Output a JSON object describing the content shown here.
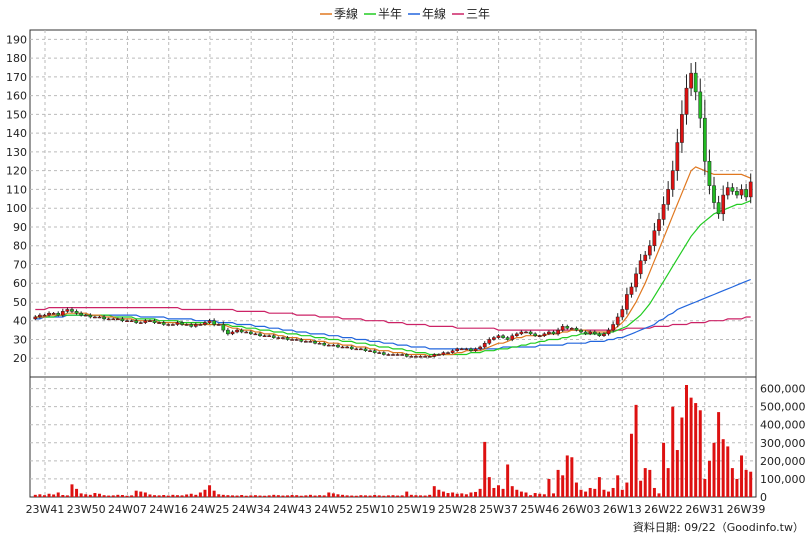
{
  "chart_data": {
    "type": "candlestick",
    "legend": [
      {
        "name": "季線",
        "color": "#e07820"
      },
      {
        "name": "半年",
        "color": "#22cc22"
      },
      {
        "name": "年線",
        "color": "#2266dd"
      },
      {
        "name": "三年",
        "color": "#cc2266"
      }
    ],
    "price_axis": {
      "min": 10,
      "max": 195,
      "ticks": [
        20,
        30,
        40,
        50,
        60,
        70,
        80,
        90,
        100,
        110,
        120,
        130,
        140,
        150,
        160,
        170,
        180,
        190
      ]
    },
    "volume_axis": {
      "min": 0,
      "max": 620000,
      "ticks": [
        0,
        100000,
        200000,
        300000,
        400000,
        500000,
        600000
      ],
      "tick_labels": [
        "0",
        "100,000",
        "200,000",
        "300,000",
        "400,000",
        "500,000",
        "600,000"
      ]
    },
    "x_labels": [
      "23W41",
      "23W50",
      "24W07",
      "24W16",
      "24W25",
      "24W34",
      "24W43",
      "24W52",
      "25W10",
      "25W19",
      "25W28",
      "25W37",
      "25W46",
      "26W03",
      "26W13",
      "26W22",
      "26W31",
      "26W39"
    ],
    "weeks": 157,
    "close": [
      42,
      43,
      43,
      44,
      44,
      43,
      45,
      46,
      45,
      44,
      43,
      43,
      42,
      42,
      42,
      41,
      41,
      41,
      41,
      40,
      40,
      40,
      39,
      39,
      40,
      40,
      39,
      39,
      38,
      38,
      38,
      39,
      38,
      38,
      37,
      38,
      38,
      39,
      40,
      38,
      38,
      35,
      33,
      34,
      35,
      34,
      34,
      33,
      33,
      32,
      32,
      32,
      31,
      31,
      31,
      30,
      30,
      30,
      29,
      29,
      29,
      28,
      28,
      27,
      27,
      27,
      26,
      26,
      26,
      25,
      25,
      25,
      24,
      24,
      23,
      23,
      22,
      22,
      22,
      22,
      22,
      21,
      21,
      21,
      21,
      21,
      21,
      22,
      22,
      23,
      23,
      24,
      25,
      25,
      25,
      24,
      25,
      26,
      28,
      30,
      31,
      32,
      31,
      30,
      32,
      33,
      34,
      34,
      33,
      32,
      32,
      33,
      34,
      33,
      35,
      37,
      36,
      36,
      35,
      34,
      33,
      34,
      33,
      32,
      33,
      35,
      38,
      42,
      46,
      54,
      58,
      65,
      72,
      75,
      80,
      88,
      94,
      102,
      110,
      120,
      135,
      150,
      164,
      172,
      162,
      148,
      125,
      112,
      103,
      97,
      107,
      111,
      109,
      107,
      110,
      106,
      114
    ],
    "q_line": [
      42,
      42,
      42,
      43,
      43,
      43,
      43,
      44,
      44,
      44,
      44,
      44,
      43,
      43,
      43,
      42,
      42,
      42,
      41,
      41,
      41,
      41,
      40,
      40,
      40,
      40,
      40,
      39,
      39,
      39,
      39,
      39,
      38,
      38,
      38,
      38,
      38,
      38,
      38,
      38,
      38,
      38,
      37,
      36,
      36,
      35,
      35,
      35,
      34,
      34,
      33,
      33,
      33,
      32,
      32,
      31,
      31,
      31,
      30,
      30,
      30,
      29,
      29,
      29,
      28,
      28,
      28,
      27,
      27,
      27,
      26,
      26,
      26,
      25,
      25,
      24,
      24,
      24,
      23,
      23,
      23,
      22,
      22,
      22,
      22,
      22,
      21,
      21,
      22,
      22,
      22,
      22,
      23,
      23,
      24,
      24,
      24,
      24,
      25,
      26,
      27,
      28,
      28,
      29,
      30,
      31,
      31,
      32,
      32,
      32,
      32,
      32,
      33,
      33,
      33,
      34,
      34,
      35,
      35,
      35,
      35,
      34,
      34,
      34,
      34,
      34,
      35,
      37,
      39,
      42,
      46,
      50,
      55,
      60,
      66,
      72,
      78,
      84,
      90,
      96,
      102,
      108,
      114,
      120,
      122,
      121,
      120,
      119,
      118,
      118,
      118,
      118,
      118,
      118,
      118,
      117,
      116
    ],
    "h_line": [
      42,
      42,
      42,
      42,
      42,
      43,
      43,
      43,
      43,
      43,
      43,
      43,
      43,
      43,
      43,
      43,
      43,
      42,
      42,
      42,
      42,
      42,
      41,
      41,
      41,
      41,
      41,
      40,
      40,
      40,
      40,
      40,
      39,
      39,
      39,
      39,
      39,
      39,
      38,
      38,
      38,
      38,
      38,
      37,
      37,
      37,
      36,
      36,
      36,
      35,
      35,
      35,
      34,
      34,
      34,
      33,
      33,
      33,
      32,
      32,
      32,
      31,
      31,
      31,
      30,
      30,
      30,
      29,
      29,
      29,
      28,
      28,
      28,
      27,
      27,
      26,
      26,
      26,
      25,
      25,
      25,
      24,
      24,
      23,
      23,
      23,
      22,
      22,
      22,
      22,
      22,
      22,
      22,
      22,
      22,
      23,
      23,
      23,
      24,
      24,
      24,
      25,
      25,
      25,
      26,
      26,
      27,
      27,
      28,
      28,
      29,
      29,
      30,
      30,
      30,
      31,
      31,
      32,
      32,
      33,
      33,
      33,
      33,
      33,
      33,
      34,
      34,
      35,
      36,
      37,
      39,
      41,
      43,
      46,
      49,
      53,
      57,
      61,
      65,
      69,
      73,
      77,
      81,
      85,
      88,
      91,
      93,
      95,
      97,
      98,
      99,
      100,
      101,
      102,
      102,
      103,
      104
    ],
    "y_line": [
      41,
      41,
      42,
      42,
      42,
      42,
      42,
      43,
      43,
      43,
      43,
      43,
      43,
      43,
      43,
      43,
      43,
      43,
      43,
      43,
      43,
      43,
      43,
      42,
      42,
      42,
      42,
      42,
      42,
      41,
      41,
      41,
      41,
      41,
      41,
      40,
      40,
      40,
      40,
      40,
      39,
      39,
      39,
      39,
      38,
      38,
      38,
      38,
      37,
      37,
      37,
      36,
      36,
      36,
      35,
      35,
      35,
      34,
      34,
      34,
      33,
      33,
      33,
      33,
      32,
      32,
      32,
      31,
      31,
      31,
      30,
      30,
      30,
      29,
      29,
      29,
      28,
      28,
      28,
      27,
      27,
      27,
      26,
      26,
      26,
      26,
      25,
      25,
      25,
      25,
      25,
      25,
      25,
      25,
      25,
      25,
      25,
      25,
      25,
      25,
      25,
      25,
      26,
      26,
      26,
      26,
      26,
      26,
      26,
      26,
      27,
      27,
      27,
      27,
      27,
      27,
      28,
      28,
      28,
      28,
      28,
      29,
      29,
      29,
      29,
      30,
      30,
      31,
      31,
      32,
      33,
      34,
      35,
      36,
      37,
      38,
      40,
      41,
      43,
      44,
      46,
      47,
      48,
      49,
      50,
      51,
      52,
      53,
      54,
      55,
      56,
      57,
      58,
      59,
      60,
      61,
      62
    ],
    "t_line": [
      46,
      46,
      46,
      47,
      47,
      47,
      47,
      47,
      47,
      47,
      47,
      47,
      47,
      47,
      47,
      47,
      47,
      47,
      47,
      47,
      47,
      47,
      47,
      47,
      47,
      47,
      47,
      47,
      47,
      47,
      47,
      47,
      46,
      46,
      46,
      46,
      46,
      46,
      46,
      46,
      46,
      46,
      46,
      46,
      45,
      45,
      45,
      45,
      45,
      45,
      45,
      44,
      44,
      44,
      44,
      44,
      44,
      43,
      43,
      43,
      43,
      43,
      42,
      42,
      42,
      42,
      42,
      41,
      41,
      41,
      41,
      41,
      40,
      40,
      40,
      40,
      40,
      39,
      39,
      39,
      39,
      38,
      38,
      38,
      38,
      38,
      37,
      37,
      37,
      37,
      37,
      37,
      36,
      36,
      36,
      36,
      36,
      36,
      36,
      36,
      36,
      35,
      35,
      35,
      35,
      35,
      35,
      35,
      35,
      35,
      35,
      35,
      35,
      35,
      35,
      35,
      35,
      35,
      35,
      35,
      35,
      35,
      35,
      35,
      35,
      35,
      35,
      35,
      35,
      36,
      36,
      36,
      36,
      36,
      36,
      37,
      37,
      37,
      37,
      38,
      38,
      38,
      38,
      39,
      39,
      39,
      39,
      40,
      40,
      40,
      40,
      41,
      41,
      41,
      41,
      42,
      42
    ],
    "volume": [
      12000,
      15000,
      10000,
      18000,
      14000,
      25000,
      11000,
      9000,
      70000,
      45000,
      20000,
      15000,
      12000,
      22000,
      18000,
      10000,
      8000,
      9000,
      12000,
      11000,
      7000,
      9000,
      35000,
      30000,
      25000,
      14000,
      10000,
      9000,
      11000,
      8000,
      12000,
      10000,
      9000,
      14000,
      18000,
      12000,
      25000,
      40000,
      65000,
      35000,
      15000,
      12000,
      10000,
      9000,
      8000,
      11000,
      7000,
      9000,
      10000,
      8000,
      7000,
      9000,
      12000,
      10000,
      8000,
      9000,
      11000,
      10000,
      7000,
      9000,
      12000,
      8000,
      10000,
      9000,
      25000,
      20000,
      15000,
      12000,
      9000,
      8000,
      7000,
      10000,
      9000,
      8000,
      11000,
      9000,
      7000,
      9000,
      10000,
      8000,
      9000,
      30000,
      12000,
      10000,
      9000,
      8000,
      12000,
      60000,
      40000,
      30000,
      22000,
      25000,
      18000,
      20000,
      15000,
      25000,
      28000,
      45000,
      305000,
      110000,
      50000,
      65000,
      45000,
      180000,
      60000,
      40000,
      30000,
      25000,
      10000,
      22000,
      18000,
      15000,
      100000,
      20000,
      150000,
      120000,
      230000,
      220000,
      80000,
      40000,
      30000,
      50000,
      45000,
      110000,
      40000,
      30000,
      50000,
      120000,
      40000,
      80000,
      350000,
      510000,
      90000,
      160000,
      150000,
      50000,
      20000,
      300000,
      160000,
      500000,
      260000,
      440000,
      620000,
      550000,
      520000,
      480000,
      100000,
      200000,
      300000,
      470000,
      320000,
      280000,
      160000,
      100000,
      230000,
      150000,
      140000
    ]
  },
  "footer": "資料日期: 09/22（Goodinfo.tw）"
}
